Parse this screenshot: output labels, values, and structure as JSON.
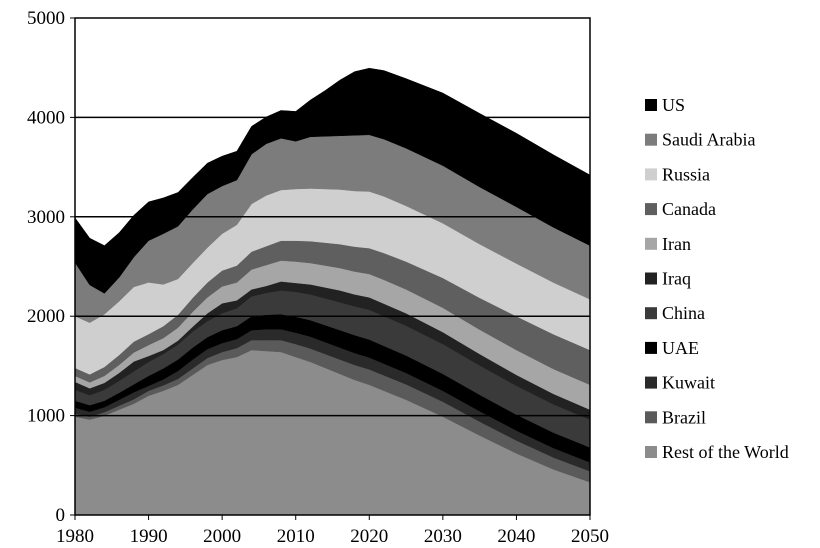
{
  "chart_data": {
    "type": "area",
    "stacked": true,
    "title": "",
    "xlabel": "",
    "ylabel": "",
    "xlim": [
      1980,
      2050
    ],
    "ylim": [
      0,
      5000
    ],
    "xticks": [
      1980,
      1990,
      2000,
      2010,
      2020,
      2030,
      2040,
      2050
    ],
    "yticks": [
      0,
      1000,
      2000,
      3000,
      4000,
      5000
    ],
    "grid": "horizontal",
    "legend_position": "right",
    "x": [
      1980,
      1982,
      1984,
      1986,
      1988,
      1990,
      1992,
      1994,
      1996,
      1998,
      2000,
      2002,
      2004,
      2006,
      2008,
      2010,
      2012,
      2014,
      2016,
      2018,
      2020,
      2022,
      2025,
      2030,
      2035,
      2040,
      2045,
      2050
    ],
    "series": [
      {
        "name": "Rest of the World",
        "color": "#8c8c8c",
        "values": [
          990,
          960,
          1000,
          1060,
          1120,
          1200,
          1250,
          1310,
          1410,
          1510,
          1560,
          1590,
          1660,
          1650,
          1640,
          1590,
          1540,
          1480,
          1420,
          1360,
          1310,
          1250,
          1160,
          990,
          800,
          620,
          460,
          330
        ]
      },
      {
        "name": "Brazil",
        "color": "#5a5a5a",
        "values": [
          30,
          30,
          35,
          40,
          45,
          50,
          55,
          60,
          65,
          70,
          80,
          90,
          100,
          110,
          120,
          130,
          135,
          140,
          145,
          150,
          155,
          155,
          155,
          150,
          140,
          130,
          120,
          110
        ]
      },
      {
        "name": "Kuwait",
        "color": "#2a2a2a",
        "values": [
          60,
          50,
          50,
          60,
          70,
          50,
          60,
          80,
          90,
          90,
          90,
          90,
          100,
          110,
          110,
          115,
          120,
          120,
          120,
          120,
          120,
          118,
          115,
          110,
          105,
          100,
          95,
          90
        ]
      },
      {
        "name": "UAE",
        "color": "#000000",
        "values": [
          70,
          65,
          65,
          70,
          80,
          100,
          110,
          115,
          120,
          120,
          130,
          130,
          140,
          145,
          150,
          160,
          165,
          170,
          175,
          180,
          180,
          178,
          175,
          170,
          165,
          160,
          155,
          150
        ]
      },
      {
        "name": "China",
        "color": "#3a3a3a",
        "values": [
          110,
          100,
          110,
          120,
          130,
          140,
          145,
          150,
          160,
          160,
          170,
          180,
          200,
          220,
          240,
          250,
          260,
          270,
          280,
          290,
          300,
          300,
          300,
          300,
          295,
          290,
          285,
          280
        ]
      },
      {
        "name": "Iraq",
        "color": "#222222",
        "values": [
          80,
          70,
          70,
          80,
          100,
          60,
          40,
          40,
          50,
          80,
          100,
          80,
          70,
          70,
          90,
          90,
          100,
          110,
          120,
          120,
          125,
          125,
          125,
          120,
          115,
          110,
          105,
          100
        ]
      },
      {
        "name": "Iran",
        "color": "#a6a6a6",
        "values": [
          60,
          60,
          70,
          80,
          90,
          110,
          120,
          130,
          150,
          160,
          170,
          180,
          200,
          210,
          210,
          215,
          215,
          220,
          225,
          230,
          235,
          240,
          240,
          245,
          245,
          250,
          250,
          250
        ]
      },
      {
        "name": "Canada",
        "color": "#5f5f5f",
        "values": [
          80,
          80,
          90,
          100,
          110,
          110,
          120,
          130,
          140,
          150,
          160,
          170,
          180,
          190,
          200,
          210,
          220,
          230,
          240,
          250,
          260,
          270,
          280,
          300,
          320,
          340,
          350,
          350
        ]
      },
      {
        "name": "Russia",
        "color": "#cfcfcf",
        "values": [
          520,
          520,
          530,
          540,
          550,
          520,
          420,
          360,
          350,
          350,
          370,
          410,
          480,
          510,
          510,
          520,
          530,
          540,
          550,
          560,
          570,
          570,
          560,
          550,
          540,
          530,
          520,
          510
        ]
      },
      {
        "name": "Saudi Arabia",
        "color": "#7c7c7c",
        "values": [
          540,
          380,
          210,
          240,
          300,
          420,
          510,
          530,
          540,
          540,
          480,
          450,
          500,
          520,
          520,
          480,
          520,
          530,
          540,
          560,
          570,
          575,
          580,
          580,
          575,
          570,
          555,
          540
        ]
      },
      {
        "name": "US",
        "color": "#000000",
        "values": [
          450,
          470,
          480,
          450,
          420,
          390,
          360,
          340,
          320,
          310,
          300,
          290,
          280,
          270,
          280,
          300,
          370,
          460,
          560,
          640,
          670,
          690,
          700,
          730,
          740,
          740,
          730,
          710
        ]
      }
    ]
  }
}
